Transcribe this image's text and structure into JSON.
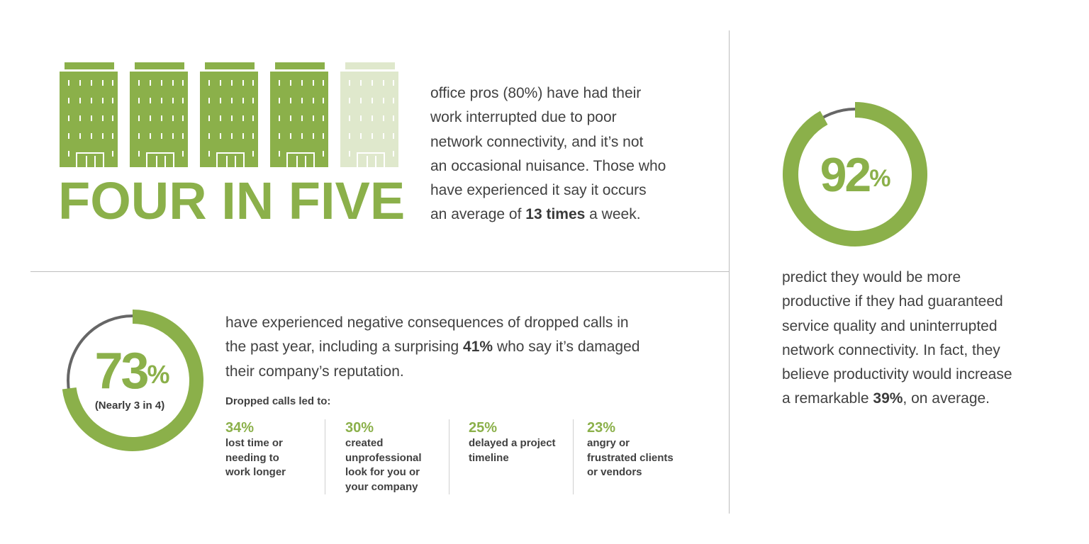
{
  "colors": {
    "accent": "#8bb04a",
    "accent_light": "#dfe8cc",
    "text": "#414141",
    "ring_track": "#666666",
    "divider": "#bdbdbd"
  },
  "top_left": {
    "buildings": {
      "icon": "office-building-icon",
      "total": 5,
      "highlighted": 4
    },
    "headline": "FOUR IN FIVE",
    "description_lines": [
      "office pros (80%) have had their",
      "work interrupted due to poor",
      "network connectivity, and it’s not",
      "an occasional nuisance. Those who",
      "have experienced it say it occurs"
    ],
    "description_last_prefix": "an average of ",
    "description_last_bold": "13 times",
    "description_last_suffix": " a week."
  },
  "bottom_left": {
    "ring": {
      "value": "73",
      "percent_sign": "%",
      "percent": 73,
      "caption": "(Nearly 3 in 4)"
    },
    "description_line1": "have experienced negative consequences of dropped calls in",
    "description_line2_prefix": "the past year, including a surprising ",
    "description_line2_bold": "41%",
    "description_line2_suffix": " who say it’s damaged",
    "description_line3": "their company’s reputation.",
    "list_title": "Dropped calls led to:",
    "stats": [
      {
        "pct": "34%",
        "lines": [
          "lost time or",
          "needing to",
          "work longer"
        ]
      },
      {
        "pct": "30%",
        "lines": [
          "created",
          "unprofessional",
          "look for you or",
          "your company"
        ]
      },
      {
        "pct": "25%",
        "lines": [
          "delayed a project",
          "timeline"
        ]
      },
      {
        "pct": "23%",
        "lines": [
          "angry or",
          "frustrated clients",
          "or vendors"
        ]
      }
    ]
  },
  "right": {
    "ring": {
      "value": "92",
      "percent_sign": "%",
      "percent": 92
    },
    "description_lines": [
      "predict they would be more",
      "productive if they had guaranteed",
      "service quality and uninterrupted",
      "network connectivity. In fact, they",
      "believe productivity would increase"
    ],
    "description_last_prefix": "a remarkable ",
    "description_last_bold": "39%",
    "description_last_suffix": ", on average."
  }
}
